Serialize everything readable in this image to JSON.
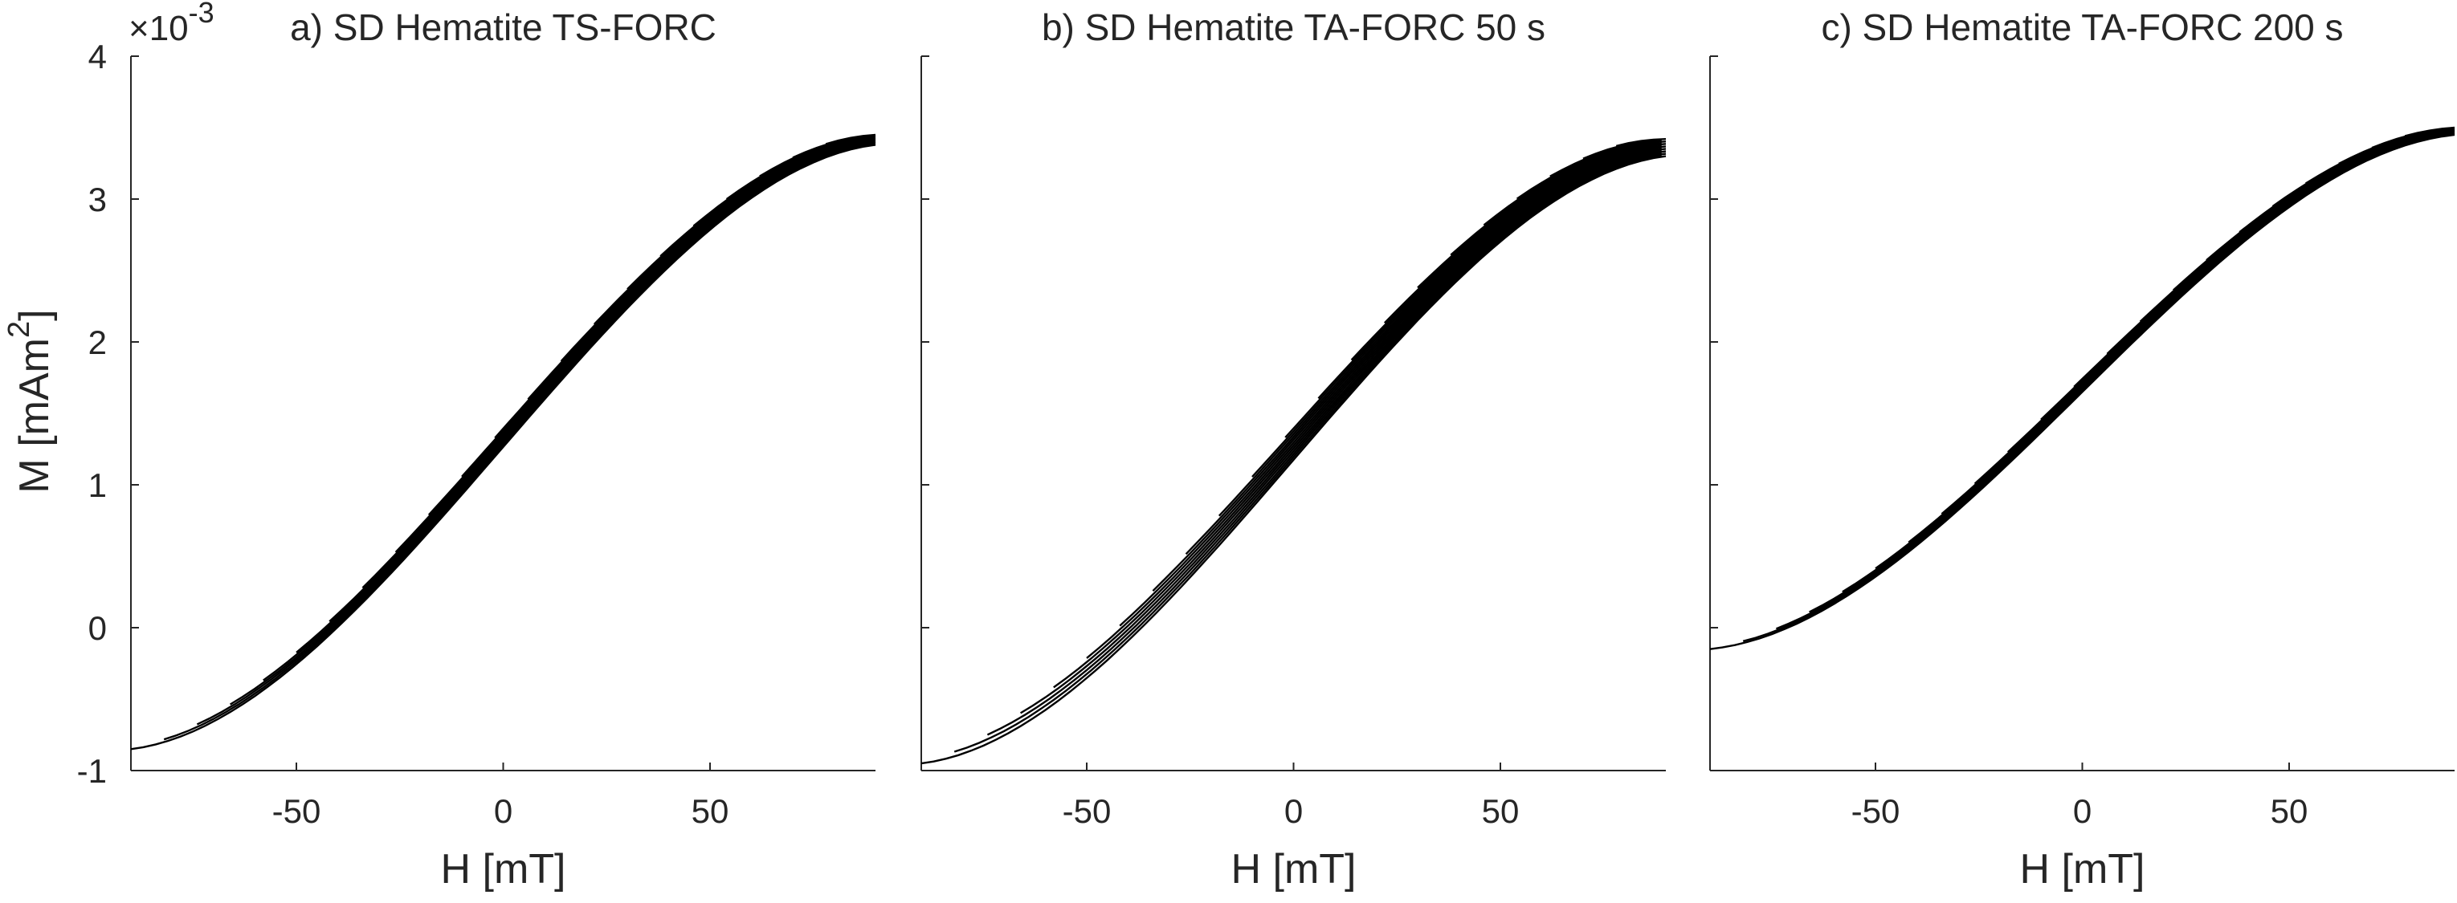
{
  "chart_data": [
    {
      "type": "line",
      "title": "a) SD Hematite TS-FORC",
      "xlabel": "H [mT]",
      "ylabel": "M [mAm",
      "ylabel_sup": "2",
      "ylabel_close": "]",
      "y_exponent_base": "×10",
      "y_exponent": "-3",
      "xlim": [
        -90,
        90
      ],
      "ylim": [
        -1,
        4
      ],
      "xticks": [
        -50,
        0,
        50
      ],
      "xtick_labels": [
        "-50",
        "0",
        "50"
      ],
      "yticks": [
        -1,
        0,
        1,
        2,
        3,
        4
      ],
      "ytick_labels": [
        "-1",
        "0",
        "1",
        "2",
        "3",
        "4"
      ],
      "show_y_tick_labels": true,
      "grid": false,
      "legend": "none",
      "curve_family": {
        "count": 22,
        "reversal_field_start": -90,
        "reversal_field_step": 8,
        "saturation_branch_start": [
          -90,
          -0.85
        ],
        "saturation_branch_end": [
          90,
          3.38
        ],
        "upper_envelope_end": [
          90,
          3.45
        ]
      }
    },
    {
      "type": "line",
      "title": "b) SD Hematite TA-FORC 50 s",
      "xlabel": "H [mT]",
      "xlim": [
        -90,
        90
      ],
      "ylim": [
        -1,
        4
      ],
      "xticks": [
        -50,
        0,
        50
      ],
      "xtick_labels": [
        "-50",
        "0",
        "50"
      ],
      "yticks": [
        -1,
        0,
        1,
        2,
        3,
        4
      ],
      "show_y_tick_labels": false,
      "grid": false,
      "legend": "none",
      "curve_family": {
        "count": 22,
        "reversal_field_start": -90,
        "reversal_field_step": 8,
        "saturation_branch_start": [
          -90,
          -0.95
        ],
        "saturation_branch_end": [
          90,
          3.3
        ],
        "upper_envelope_end": [
          90,
          3.42
        ]
      }
    },
    {
      "type": "line",
      "title": "c) SD Hematite TA-FORC 200 s",
      "xlabel": "H [mT]",
      "xlim": [
        -90,
        90
      ],
      "ylim": [
        -1,
        4
      ],
      "xticks": [
        -50,
        0,
        50
      ],
      "xtick_labels": [
        "-50",
        "0",
        "50"
      ],
      "yticks": [
        -1,
        0,
        1,
        2,
        3,
        4
      ],
      "show_y_tick_labels": false,
      "grid": false,
      "legend": "none",
      "curve_family": {
        "count": 22,
        "reversal_field_start": -90,
        "reversal_field_step": 8,
        "saturation_branch_start": [
          -90,
          -0.15
        ],
        "saturation_branch_end": [
          90,
          3.45
        ],
        "upper_envelope_end": [
          90,
          3.5
        ]
      }
    }
  ]
}
